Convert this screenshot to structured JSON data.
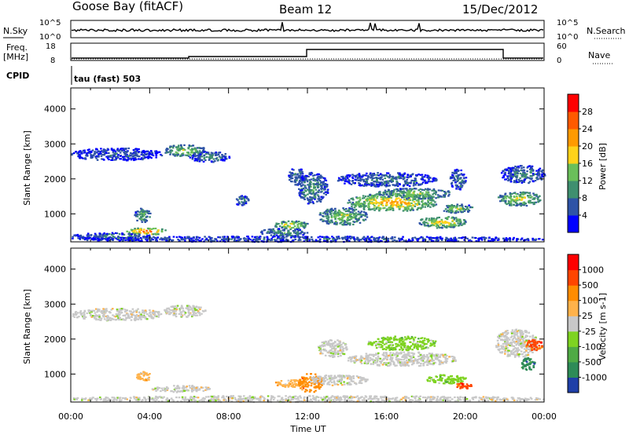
{
  "header": {
    "station": "Goose Bay (fitACF)",
    "beam": "Beam 12",
    "date": "15/Dec/2012"
  },
  "top_panels": {
    "nsky_label": "N.Sky",
    "nsky_ticks": [
      "10^5",
      "10^0"
    ],
    "nsearch_label": "N.Search",
    "nsearch_ticks": [
      "10^5",
      "10^0"
    ],
    "freq_label_line1": "Freq.",
    "freq_label_line2": "[MHz]",
    "freq_ticks": [
      "18",
      "8"
    ],
    "nave_label": "Nave",
    "nave_ticks": [
      "60",
      "0"
    ],
    "cpid_label": "CPID",
    "cpid_text": "tau (fast) 503"
  },
  "chart_data": [
    {
      "type": "heatmap",
      "name": "power",
      "ylabel": "Slant Range [km]",
      "xlabel": "",
      "xlim": [
        0,
        24
      ],
      "ylim": [
        200,
        4600
      ],
      "yticks": [
        1000,
        2000,
        3000,
        4000
      ],
      "colorbar": {
        "label": "Power [dB]",
        "range": [
          0,
          32
        ],
        "ticks": [
          4,
          8,
          12,
          16,
          20,
          24,
          28
        ],
        "colors": [
          "#0000ff",
          "#2e53a6",
          "#3f8f6f",
          "#6abf5a",
          "#ffd21a",
          "#ff9a00",
          "#ff5a00",
          "#ff0000"
        ]
      },
      "regions": [
        {
          "t": [
            2.8,
            4.8
          ],
          "r": [
            420,
            620
          ],
          "level": 24
        },
        {
          "t": [
            0.0,
            4.0
          ],
          "r": [
            280,
            480
          ],
          "level": 8
        },
        {
          "t": [
            3.2,
            4.0
          ],
          "r": [
            780,
            1180
          ],
          "level": 12
        },
        {
          "t": [
            4.7,
            6.8
          ],
          "r": [
            2650,
            3000
          ],
          "level": 14
        },
        {
          "t": [
            0.0,
            4.6
          ],
          "r": [
            2550,
            2900
          ],
          "level": 6
        },
        {
          "t": [
            6.0,
            8.0
          ],
          "r": [
            2500,
            2800
          ],
          "level": 8
        },
        {
          "t": [
            8.3,
            9.0
          ],
          "r": [
            1250,
            1550
          ],
          "level": 8
        },
        {
          "t": [
            10.3,
            12.0
          ],
          "r": [
            580,
            820
          ],
          "level": 18
        },
        {
          "t": [
            9.5,
            12.0
          ],
          "r": [
            380,
            600
          ],
          "level": 10
        },
        {
          "t": [
            11.0,
            11.8
          ],
          "r": [
            1850,
            2350
          ],
          "level": 8
        },
        {
          "t": [
            11.5,
            13.0
          ],
          "r": [
            1300,
            2200
          ],
          "level": 10
        },
        {
          "t": [
            12.5,
            15.0
          ],
          "r": [
            700,
            1200
          ],
          "level": 14
        },
        {
          "t": [
            13.5,
            18.5
          ],
          "r": [
            1800,
            2200
          ],
          "level": 8
        },
        {
          "t": [
            14.0,
            18.5
          ],
          "r": [
            1100,
            1600
          ],
          "level": 20
        },
        {
          "t": [
            15.5,
            19.3
          ],
          "r": [
            1450,
            1750
          ],
          "level": 14
        },
        {
          "t": [
            17.6,
            20.0
          ],
          "r": [
            620,
            950
          ],
          "level": 18
        },
        {
          "t": [
            18.7,
            20.4
          ],
          "r": [
            1050,
            1300
          ],
          "level": 14
        },
        {
          "t": [
            19.2,
            20.0
          ],
          "r": [
            1700,
            2300
          ],
          "level": 8
        },
        {
          "t": [
            21.6,
            23.8
          ],
          "r": [
            1250,
            1650
          ],
          "level": 16
        },
        {
          "t": [
            21.8,
            24.0
          ],
          "r": [
            1900,
            2400
          ],
          "level": 8
        },
        {
          "t": [
            0.0,
            24.0
          ],
          "r": [
            220,
            380
          ],
          "level": 6
        }
      ]
    },
    {
      "type": "heatmap",
      "name": "velocity",
      "ylabel": "Slant Range [km]",
      "xlabel": "Time UT",
      "xlim": [
        0,
        24
      ],
      "ylim": [
        200,
        4600
      ],
      "yticks": [
        1000,
        2000,
        3000,
        4000
      ],
      "xtick_labels": [
        "00:00",
        "04:00",
        "08:00",
        "12:00",
        "16:00",
        "20:00",
        "00:00"
      ],
      "colorbar": {
        "label": "Velocity [m s-1]",
        "tick_labels": [
          "1000",
          "500",
          "100",
          "25",
          "-25",
          "-100",
          "-500",
          "-1000"
        ],
        "colors": [
          "#1f3fa8",
          "#2e8b57",
          "#4faa45",
          "#7ed321",
          "#c8c8c8",
          "#ffb24a",
          "#ff8c00",
          "#ff4500",
          "#ff0000"
        ]
      },
      "regions": [
        {
          "t": [
            0.0,
            4.6
          ],
          "r": [
            2550,
            2900
          ],
          "level": 4
        },
        {
          "t": [
            4.7,
            6.8
          ],
          "r": [
            2650,
            3000
          ],
          "level": 4
        },
        {
          "t": [
            3.3,
            4.0
          ],
          "r": [
            800,
            1100
          ],
          "level": 5
        },
        {
          "t": [
            4.0,
            7.0
          ],
          "r": [
            500,
            700
          ],
          "level": 4
        },
        {
          "t": [
            0.0,
            24.0
          ],
          "r": [
            220,
            400
          ],
          "level": 4
        },
        {
          "t": [
            10.3,
            12.0
          ],
          "r": [
            650,
            850
          ],
          "level": 5
        },
        {
          "t": [
            11.5,
            12.7
          ],
          "r": [
            500,
            1050
          ],
          "level": 6
        },
        {
          "t": [
            12.0,
            15.0
          ],
          "r": [
            700,
            1000
          ],
          "level": 4
        },
        {
          "t": [
            12.5,
            14.0
          ],
          "r": [
            1500,
            2000
          ],
          "level": 4
        },
        {
          "t": [
            14.0,
            19.5
          ],
          "r": [
            1250,
            1650
          ],
          "level": 4
        },
        {
          "t": [
            15.0,
            18.5
          ],
          "r": [
            1700,
            2100
          ],
          "level": 3
        },
        {
          "t": [
            18.0,
            20.0
          ],
          "r": [
            750,
            1000
          ],
          "level": 3
        },
        {
          "t": [
            19.5,
            20.3
          ],
          "r": [
            600,
            800
          ],
          "level": 7
        },
        {
          "t": [
            21.5,
            23.6
          ],
          "r": [
            1500,
            2300
          ],
          "level": 4
        },
        {
          "t": [
            22.8,
            23.5
          ],
          "r": [
            1100,
            1500
          ],
          "level": 1
        },
        {
          "t": [
            23.0,
            23.9
          ],
          "r": [
            1700,
            2000
          ],
          "level": 7
        }
      ]
    }
  ]
}
